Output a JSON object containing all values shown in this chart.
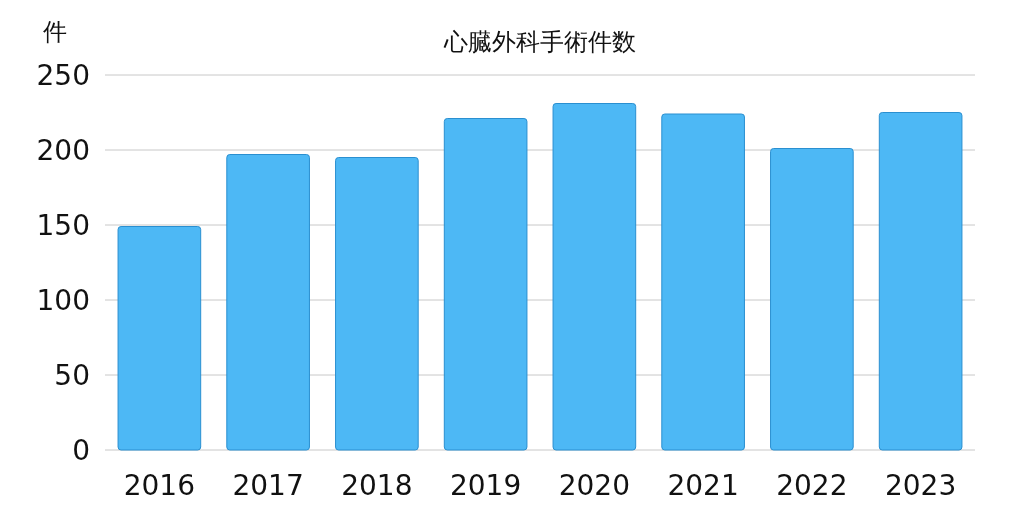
{
  "chart_data": {
    "type": "bar",
    "title": "心臓外科手術件数",
    "ylabel": "件",
    "categories": [
      "2016",
      "2017",
      "2018",
      "2019",
      "2020",
      "2021",
      "2022",
      "2023"
    ],
    "values": [
      149,
      197,
      195,
      221,
      231,
      224,
      201,
      225
    ],
    "color": "#4db8f5",
    "ylim": [
      0,
      250
    ],
    "yticks": [
      0,
      50,
      100,
      150,
      200,
      250
    ],
    "grid": "y"
  }
}
